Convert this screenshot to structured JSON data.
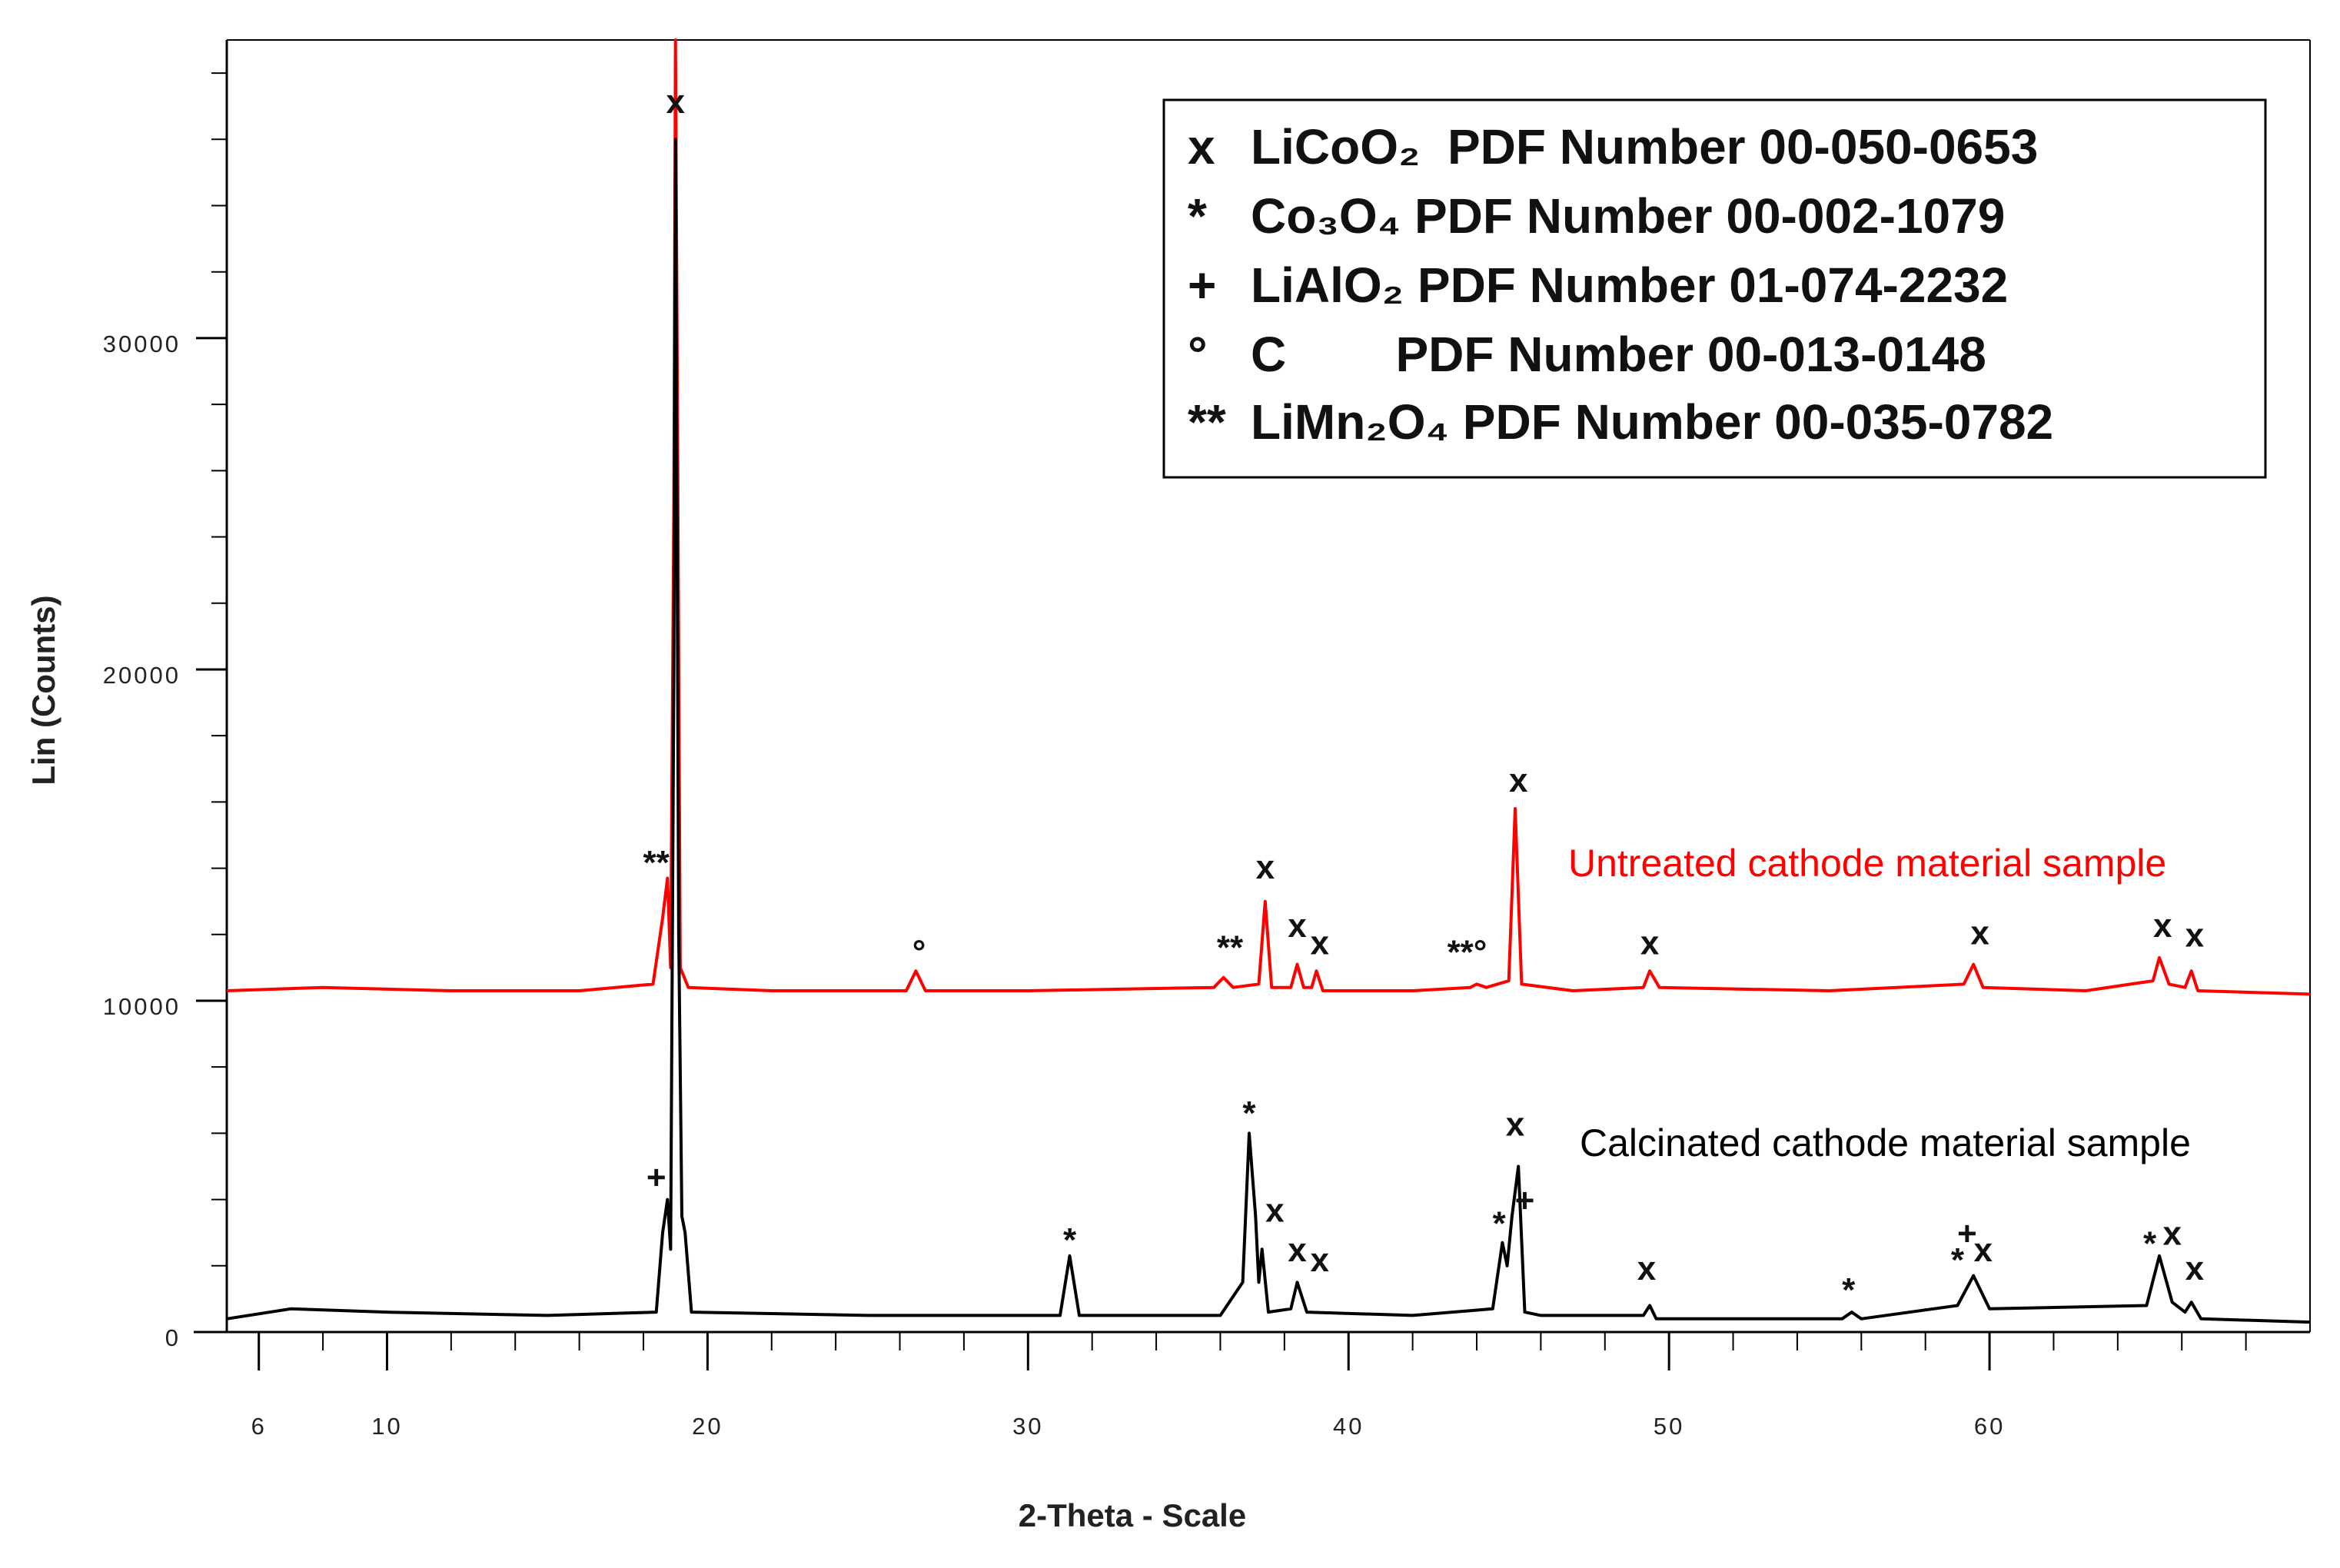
{
  "chart_data": {
    "type": "line",
    "xlabel": "2-Theta - Scale",
    "ylabel": "Lin (Counts)",
    "xlim": [
      5,
      70
    ],
    "xticks": [
      6,
      10,
      20,
      30,
      40,
      50,
      60
    ],
    "xminorticks": [
      6,
      8,
      10,
      12,
      14,
      16,
      18,
      20,
      22,
      24,
      26,
      28,
      30,
      32,
      34,
      36,
      38,
      40,
      42,
      44,
      46,
      48,
      50,
      52,
      54,
      56,
      58,
      60,
      62,
      64,
      66,
      68
    ],
    "ylim": [
      0,
      39000
    ],
    "yticks": [
      0,
      10000,
      20000,
      30000
    ],
    "yminorticks": [
      2000,
      4000,
      6000,
      8000,
      12000,
      14000,
      16000,
      18000,
      22000,
      24000,
      26000,
      28000,
      32000,
      34000,
      36000,
      38000
    ],
    "legend": [
      {
        "symbol": "x",
        "label": "LiCoO₂  PDF Number 00-050-0653"
      },
      {
        "symbol": "*",
        "label": "Co₃O₄ PDF Number 00-002-1079"
      },
      {
        "symbol": "+",
        "label": "LiAlO₂ PDF Number 01-074-2232"
      },
      {
        "symbol": "°",
        "label": "C        PDF Number 00-013-0148"
      },
      {
        "symbol": "**",
        "label": "LiMn₂O₄ PDF Number 00-035-0782"
      }
    ],
    "series": [
      {
        "name": "Untreated cathode material sample",
        "color": "#ff0000",
        "x": [
          5,
          8,
          12,
          16,
          18.3,
          18.6,
          18.75,
          18.85,
          18.95,
          19.0,
          19.05,
          19.15,
          19.4,
          22,
          26.2,
          26.5,
          26.8,
          30,
          35.8,
          36.1,
          36.4,
          37.2,
          37.4,
          37.6,
          38.2,
          38.4,
          38.6,
          38.85,
          39.0,
          39.2,
          42,
          43.8,
          44.0,
          44.3,
          45.0,
          45.2,
          45.4,
          47,
          49.2,
          49.4,
          49.7,
          55,
          59.2,
          59.5,
          59.8,
          63,
          65.1,
          65.3,
          65.6,
          66.1,
          66.3,
          66.5,
          70
        ],
        "values": [
          10300,
          10400,
          10300,
          10300,
          10500,
          12500,
          13700,
          11000,
          25000,
          39000,
          30000,
          11000,
          10400,
          10300,
          10300,
          10900,
          10300,
          10300,
          10400,
          10700,
          10400,
          10500,
          13000,
          10400,
          10400,
          11100,
          10400,
          10400,
          10900,
          10300,
          10300,
          10400,
          10500,
          10400,
          10600,
          15800,
          10500,
          10300,
          10400,
          10900,
          10400,
          10300,
          10500,
          11100,
          10400,
          10300,
          10600,
          11300,
          10500,
          10400,
          10900,
          10300,
          10200
        ]
      },
      {
        "name": "Calcinated cathode material sample",
        "color": "#000000",
        "x": [
          5,
          7,
          10,
          15,
          18.4,
          18.6,
          18.75,
          18.85,
          18.95,
          19.0,
          19.1,
          19.2,
          19.3,
          19.5,
          25,
          31.0,
          31.3,
          31.6,
          36.0,
          36.7,
          36.9,
          37.1,
          37.2,
          37.3,
          37.5,
          38.2,
          38.4,
          38.7,
          42,
          44.5,
          44.8,
          44.95,
          45.1,
          45.3,
          45.5,
          46,
          49.2,
          49.4,
          49.6,
          55.4,
          55.7,
          56,
          59.0,
          59.5,
          60.0,
          64.9,
          65.3,
          65.7,
          66.1,
          66.3,
          66.6,
          70
        ],
        "values": [
          400,
          700,
          600,
          500,
          600,
          3000,
          4000,
          2500,
          20000,
          36000,
          12000,
          3500,
          3000,
          600,
          500,
          500,
          2300,
          500,
          500,
          1500,
          6000,
          3500,
          1500,
          2500,
          600,
          700,
          1500,
          600,
          500,
          700,
          2700,
          2000,
          3500,
          5000,
          600,
          500,
          500,
          800,
          400,
          400,
          600,
          400,
          800,
          1700,
          700,
          800,
          2300,
          900,
          600,
          900,
          400,
          300
        ]
      }
    ],
    "annotations": [
      {
        "text": "x",
        "x": 19.0,
        "y": 37070
      },
      {
        "text": "**",
        "x": 18.4,
        "y": 14100
      },
      {
        "text": "°",
        "x": 26.6,
        "y": 11400
      },
      {
        "text": "**",
        "x": 36.3,
        "y": 11530
      },
      {
        "text": "x",
        "x": 37.4,
        "y": 13960
      },
      {
        "text": "x",
        "x": 38.4,
        "y": 12200
      },
      {
        "text": "x",
        "x": 39.1,
        "y": 11670
      },
      {
        "text": "**°",
        "x": 43.7,
        "y": 11400
      },
      {
        "text": "x",
        "x": 45.3,
        "y": 16580
      },
      {
        "text": "x",
        "x": 49.4,
        "y": 11670
      },
      {
        "text": "x",
        "x": 59.7,
        "y": 11980
      },
      {
        "text": "x",
        "x": 65.4,
        "y": 12200
      },
      {
        "text": "x",
        "x": 66.4,
        "y": 11900
      },
      {
        "text": "+",
        "x": 18.4,
        "y": 4600
      },
      {
        "text": "*",
        "x": 31.3,
        "y": 2700
      },
      {
        "text": "*",
        "x": 36.9,
        "y": 6530
      },
      {
        "text": "x",
        "x": 37.7,
        "y": 3600
      },
      {
        "text": "x",
        "x": 38.4,
        "y": 2400
      },
      {
        "text": "x",
        "x": 39.1,
        "y": 2100
      },
      {
        "text": "*",
        "x": 44.7,
        "y": 3200
      },
      {
        "text": "x",
        "x": 45.2,
        "y": 6200
      },
      {
        "text": "+",
        "x": 45.5,
        "y": 3900
      },
      {
        "text": "x",
        "x": 49.3,
        "y": 1850
      },
      {
        "text": "*",
        "x": 55.6,
        "y": 1200
      },
      {
        "text": "+",
        "x": 59.3,
        "y": 2900
      },
      {
        "text": "*",
        "x": 59.0,
        "y": 2100
      },
      {
        "text": "x",
        "x": 59.8,
        "y": 2400
      },
      {
        "text": "*",
        "x": 65.0,
        "y": 2600
      },
      {
        "text": "x",
        "x": 65.7,
        "y": 2900
      },
      {
        "text": "x",
        "x": 66.4,
        "y": 1850
      }
    ]
  }
}
